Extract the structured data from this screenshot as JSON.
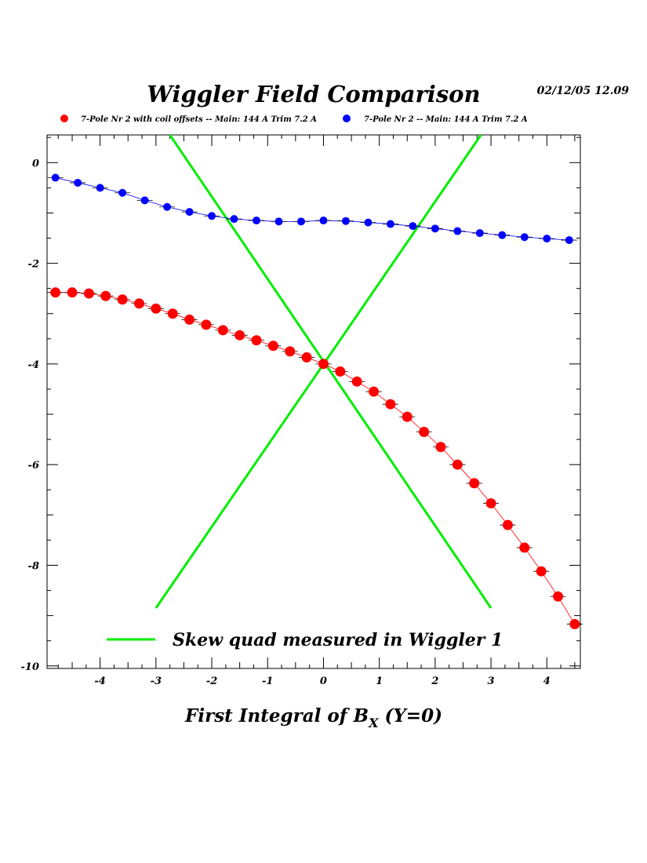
{
  "chart_data": {
    "type": "scatter",
    "title": "Wiggler Field Comparison",
    "timestamp": "02/12/05   12.09",
    "xlabel": {
      "main": "First Integral of B",
      "sub": "X",
      "tail": " (Y=0)"
    },
    "ylabel": "",
    "xlim": [
      -4.95,
      4.6
    ],
    "ylim": [
      -10.05,
      0.55
    ],
    "x_ticks": [
      -4,
      -3,
      -2,
      -1,
      0,
      1,
      2,
      3,
      4
    ],
    "y_ticks": [
      0,
      -2,
      -4,
      -6,
      -8,
      -10
    ],
    "x_tick_labels": [
      "-4",
      "-3",
      "-2",
      "-1",
      "0",
      "1",
      "2",
      "3",
      "4"
    ],
    "y_tick_labels": [
      "0",
      "-2",
      "-4",
      "-6",
      "-8",
      "-10"
    ],
    "legend_items": [
      {
        "label": "7-Pole Nr 2 with coil offsets  -- Main: 144 A  Trim 7.2 A",
        "color": "#ff0000"
      },
      {
        "label": "7-Pole Nr 2  -- Main: 144 A  Trim 7.2 A",
        "color": "#0000ff"
      }
    ],
    "series": [
      {
        "color": "#ff0000",
        "marker_size": "large",
        "x": [
          -4.8,
          -4.5,
          -4.2,
          -3.9,
          -3.6,
          -3.3,
          -3.0,
          -2.7,
          -2.4,
          -2.1,
          -1.8,
          -1.5,
          -1.2,
          -0.9,
          -0.6,
          -0.3,
          0.0,
          0.3,
          0.6,
          0.9,
          1.2,
          1.5,
          1.8,
          2.1,
          2.4,
          2.7,
          3.0,
          3.3,
          3.6,
          3.9,
          4.2,
          4.5
        ],
        "y": [
          -2.58,
          -2.58,
          -2.6,
          -2.65,
          -2.72,
          -2.8,
          -2.9,
          -3.0,
          -3.12,
          -3.22,
          -3.33,
          -3.43,
          -3.53,
          -3.64,
          -3.75,
          -3.87,
          -4.0,
          -4.15,
          -4.35,
          -4.55,
          -4.8,
          -5.05,
          -5.35,
          -5.65,
          -6.0,
          -6.37,
          -6.77,
          -7.2,
          -7.65,
          -8.12,
          -8.62,
          -9.17
        ]
      },
      {
        "color": "#0000ff",
        "marker_size": "small",
        "x": [
          -4.8,
          -4.4,
          -4.0,
          -3.6,
          -3.2,
          -2.8,
          -2.4,
          -2.0,
          -1.6,
          -1.2,
          -0.8,
          -0.4,
          0.0,
          0.4,
          0.8,
          1.2,
          1.6,
          2.0,
          2.4,
          2.8,
          3.2,
          3.6,
          4.0,
          4.4
        ],
        "y": [
          -0.3,
          -0.4,
          -0.5,
          -0.6,
          -0.75,
          -0.88,
          -0.98,
          -1.06,
          -1.12,
          -1.15,
          -1.17,
          -1.17,
          -1.15,
          -1.16,
          -1.19,
          -1.22,
          -1.26,
          -1.31,
          -1.36,
          -1.4,
          -1.44,
          -1.48,
          -1.51,
          -1.54
        ]
      }
    ],
    "lines": [
      {
        "color": "#00ee00",
        "x": [
          -2.75,
          3.0
        ],
        "y": [
          0.55,
          -8.85
        ]
      },
      {
        "color": "#00ee00",
        "x": [
          -3.0,
          2.82
        ],
        "y": [
          -8.85,
          0.55
        ]
      }
    ],
    "annotation": {
      "label": "Skew quad measured in Wiggler 1",
      "color": "#00ee00"
    },
    "grid": false
  }
}
